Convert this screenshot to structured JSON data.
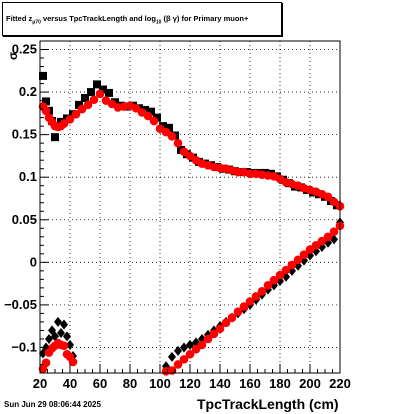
{
  "chart_data": {
    "type": "scatter",
    "title": "Fitted z versus TpcTrackLength and log (β γ) for Primary muon+",
    "title_parts": {
      "t1": "Fitted  z",
      "t1_sub": "μ70",
      "t2": "  versus TpcTrackLength and log",
      "t2_sub": "10",
      "t3": " (β  γ) for Primary muon+"
    },
    "xlabel": "TpcTrackLength (cm)",
    "ylabel": "σ",
    "xlim": [
      20,
      220
    ],
    "ylim": [
      -0.13,
      0.26
    ],
    "x_ticks": [
      20,
      40,
      60,
      80,
      100,
      120,
      140,
      160,
      180,
      200,
      220
    ],
    "y_ticks": [
      -0.1,
      -0.05,
      0,
      0.05,
      0.1,
      0.15,
      0.2,
      0.25
    ],
    "y_tick_labels": [
      "−0.1",
      "−0.05",
      "0",
      "0.05",
      "0.1",
      "0.15",
      "0.2",
      "0.25"
    ],
    "grid": true,
    "series": [
      {
        "marker": "square",
        "color": "#000000",
        "points": [
          [
            22,
            0.219
          ],
          [
            24,
            0.189
          ],
          [
            26,
            0.178
          ],
          [
            28,
            0.166
          ],
          [
            30,
            0.147
          ],
          [
            32,
            0.16
          ],
          [
            34,
            0.165
          ],
          [
            38,
            0.169
          ],
          [
            42,
            0.174
          ],
          [
            46,
            0.185
          ],
          [
            50,
            0.193
          ],
          [
            54,
            0.2
          ],
          [
            58,
            0.209
          ],
          [
            62,
            0.203
          ],
          [
            66,
            0.199
          ],
          [
            70,
            0.188
          ],
          [
            74,
            0.184
          ],
          [
            78,
            0.183
          ],
          [
            82,
            0.184
          ],
          [
            86,
            0.181
          ],
          [
            90,
            0.179
          ],
          [
            94,
            0.177
          ],
          [
            98,
            0.17
          ],
          [
            102,
            0.16
          ],
          [
            106,
            0.158
          ],
          [
            110,
            0.149
          ],
          [
            114,
            0.132
          ],
          [
            118,
            0.127
          ],
          [
            122,
            0.123
          ],
          [
            126,
            0.118
          ],
          [
            130,
            0.116
          ],
          [
            134,
            0.114
          ],
          [
            138,
            0.112
          ],
          [
            142,
            0.11
          ],
          [
            146,
            0.109
          ],
          [
            150,
            0.107
          ],
          [
            154,
            0.106
          ],
          [
            158,
            0.106
          ],
          [
            162,
            0.105
          ],
          [
            166,
            0.105
          ],
          [
            170,
            0.105
          ],
          [
            174,
            0.104
          ],
          [
            178,
            0.101
          ],
          [
            182,
            0.097
          ],
          [
            186,
            0.093
          ],
          [
            190,
            0.089
          ],
          [
            194,
            0.088
          ],
          [
            198,
            0.085
          ],
          [
            202,
            0.082
          ],
          [
            206,
            0.08
          ],
          [
            210,
            0.077
          ],
          [
            214,
            0.072
          ],
          [
            218,
            0.067
          ]
        ]
      },
      {
        "marker": "circle",
        "color": "#ff0000",
        "points": [
          [
            22,
            0.183
          ],
          [
            24,
            0.178
          ],
          [
            26,
            0.17
          ],
          [
            28,
            0.165
          ],
          [
            30,
            0.16
          ],
          [
            32,
            0.159
          ],
          [
            34,
            0.16
          ],
          [
            36,
            0.163
          ],
          [
            40,
            0.168
          ],
          [
            44,
            0.174
          ],
          [
            48,
            0.18
          ],
          [
            52,
            0.185
          ],
          [
            56,
            0.191
          ],
          [
            60,
            0.198
          ],
          [
            64,
            0.19
          ],
          [
            68,
            0.186
          ],
          [
            72,
            0.182
          ],
          [
            76,
            0.183
          ],
          [
            80,
            0.184
          ],
          [
            84,
            0.181
          ],
          [
            88,
            0.176
          ],
          [
            92,
            0.172
          ],
          [
            96,
            0.166
          ],
          [
            100,
            0.157
          ],
          [
            104,
            0.153
          ],
          [
            108,
            0.148
          ],
          [
            112,
            0.14
          ],
          [
            116,
            0.13
          ],
          [
            120,
            0.125
          ],
          [
            124,
            0.12
          ],
          [
            128,
            0.116
          ],
          [
            132,
            0.114
          ],
          [
            136,
            0.112
          ],
          [
            140,
            0.111
          ],
          [
            144,
            0.11
          ],
          [
            148,
            0.108
          ],
          [
            152,
            0.106
          ],
          [
            156,
            0.106
          ],
          [
            160,
            0.104
          ],
          [
            164,
            0.104
          ],
          [
            168,
            0.103
          ],
          [
            172,
            0.102
          ],
          [
            176,
            0.101
          ],
          [
            180,
            0.098
          ],
          [
            184,
            0.094
          ],
          [
            188,
            0.092
          ],
          [
            192,
            0.09
          ],
          [
            196,
            0.087
          ],
          [
            200,
            0.085
          ],
          [
            204,
            0.083
          ],
          [
            208,
            0.08
          ],
          [
            212,
            0.077
          ],
          [
            216,
            0.071
          ],
          [
            220,
            0.066
          ]
        ]
      },
      {
        "marker": "diamond",
        "color": "#000000",
        "points": [
          [
            22,
            -0.107
          ],
          [
            24,
            -0.1
          ],
          [
            26,
            -0.09
          ],
          [
            28,
            -0.08
          ],
          [
            30,
            -0.087
          ],
          [
            32,
            -0.07
          ],
          [
            34,
            -0.083
          ],
          [
            36,
            -0.073
          ],
          [
            38,
            -0.087
          ],
          [
            40,
            -0.097
          ],
          [
            42,
            -0.11
          ],
          [
            104,
            -0.122
          ],
          [
            108,
            -0.111
          ],
          [
            112,
            -0.104
          ],
          [
            116,
            -0.1
          ],
          [
            120,
            -0.097
          ],
          [
            124,
            -0.094
          ],
          [
            128,
            -0.09
          ],
          [
            132,
            -0.085
          ],
          [
            136,
            -0.08
          ],
          [
            140,
            -0.075
          ],
          [
            144,
            -0.07
          ],
          [
            148,
            -0.065
          ],
          [
            152,
            -0.06
          ],
          [
            156,
            -0.055
          ],
          [
            160,
            -0.05
          ],
          [
            164,
            -0.044
          ],
          [
            168,
            -0.038
          ],
          [
            172,
            -0.032
          ],
          [
            176,
            -0.027
          ],
          [
            180,
            -0.022
          ],
          [
            184,
            -0.017
          ],
          [
            188,
            -0.01
          ],
          [
            192,
            -0.004
          ],
          [
            196,
            0.002
          ],
          [
            200,
            0.008
          ],
          [
            204,
            0.013
          ],
          [
            208,
            0.018
          ],
          [
            212,
            0.023
          ],
          [
            216,
            0.027
          ],
          [
            220,
            0.047
          ]
        ]
      },
      {
        "marker": "circle",
        "color": "#ff0000",
        "points": [
          [
            22,
            -0.125
          ],
          [
            24,
            -0.118
          ],
          [
            26,
            -0.106
          ],
          [
            28,
            -0.101
          ],
          [
            30,
            -0.098
          ],
          [
            32,
            -0.095
          ],
          [
            34,
            -0.097
          ],
          [
            36,
            -0.098
          ],
          [
            38,
            -0.108
          ],
          [
            40,
            -0.111
          ],
          [
            42,
            -0.117
          ],
          [
            104,
            -0.128
          ],
          [
            108,
            -0.127
          ],
          [
            112,
            -0.12
          ],
          [
            116,
            -0.114
          ],
          [
            120,
            -0.108
          ],
          [
            124,
            -0.102
          ],
          [
            128,
            -0.097
          ],
          [
            132,
            -0.09
          ],
          [
            136,
            -0.084
          ],
          [
            140,
            -0.078
          ],
          [
            144,
            -0.071
          ],
          [
            148,
            -0.065
          ],
          [
            152,
            -0.058
          ],
          [
            156,
            -0.052
          ],
          [
            160,
            -0.046
          ],
          [
            164,
            -0.04
          ],
          [
            168,
            -0.034
          ],
          [
            172,
            -0.027
          ],
          [
            176,
            -0.021
          ],
          [
            180,
            -0.015
          ],
          [
            184,
            -0.009
          ],
          [
            188,
            -0.003
          ],
          [
            192,
            0.003
          ],
          [
            196,
            0.009
          ],
          [
            200,
            0.015
          ],
          [
            204,
            0.02
          ],
          [
            208,
            0.025
          ],
          [
            212,
            0.03
          ],
          [
            216,
            0.036
          ],
          [
            220,
            0.043
          ]
        ]
      }
    ]
  },
  "footer": {
    "date": "Sun Jun 29 08:06:44 2025"
  }
}
